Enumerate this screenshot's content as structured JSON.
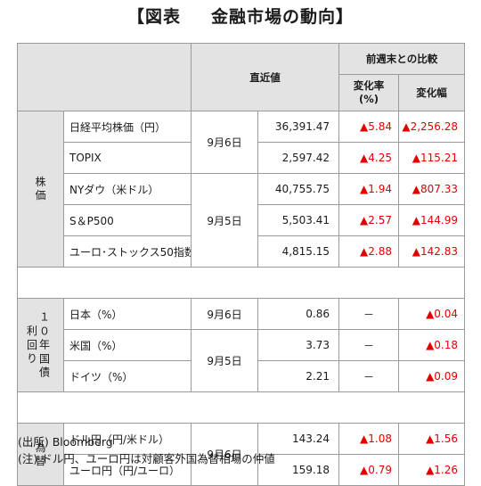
{
  "title_left": "【図表",
  "title_right": "金融市場の動向】",
  "headers": {
    "latest": "直近値",
    "comparison": "前週末との比較",
    "pct": "変化率\n(%)",
    "width": "変化幅"
  },
  "categories": {
    "stocks": "株\n価",
    "bonds_col1": "利\n回\nり",
    "bonds_col2": "１\n０\n年\n国\n債",
    "fx": "為\n替"
  },
  "dates": {
    "d1": "9月6日",
    "d2": "9月5日",
    "d3": "9月6日",
    "d4": "9月5日",
    "d5": "9月6日"
  },
  "rows": [
    {
      "name": "日経平均株価（円）",
      "value": "36,391.47",
      "pct": "▲5.84",
      "change": "▲2,256.28"
    },
    {
      "name": "TOPIX",
      "value": "2,597.42",
      "pct": "▲4.25",
      "change": "▲115.21"
    },
    {
      "name": "NYダウ（米ドル）",
      "value": "40,755.75",
      "pct": "▲1.94",
      "change": "▲807.33"
    },
    {
      "name": "S＆P500",
      "value": "5,503.41",
      "pct": "▲2.57",
      "change": "▲144.99"
    },
    {
      "name": "ユーロ･ストックス50指数",
      "value": "4,815.15",
      "pct": "▲2.88",
      "change": "▲142.83"
    },
    {
      "name": "日本（%）",
      "value": "0.86",
      "pct": "－",
      "change": "▲0.04"
    },
    {
      "name": "米国（%）",
      "value": "3.73",
      "pct": "－",
      "change": "▲0.18"
    },
    {
      "name": "ドイツ（%）",
      "value": "2.21",
      "pct": "－",
      "change": "▲0.09"
    },
    {
      "name": "ドル円（円/米ドル）",
      "value": "143.24",
      "pct": "▲1.08",
      "change": "▲1.56"
    },
    {
      "name": "ユーロ円（円/ユーロ）",
      "value": "159.18",
      "pct": "▲0.79",
      "change": "▲1.26"
    }
  ],
  "notes": {
    "source": "(出所) Bloomberg",
    "note": "(注) ドル円、ユーロ円は対顧客外国為替相場の仲値"
  },
  "colors": {
    "negative": "#e00000",
    "header_bg": "#e3e3e3"
  }
}
